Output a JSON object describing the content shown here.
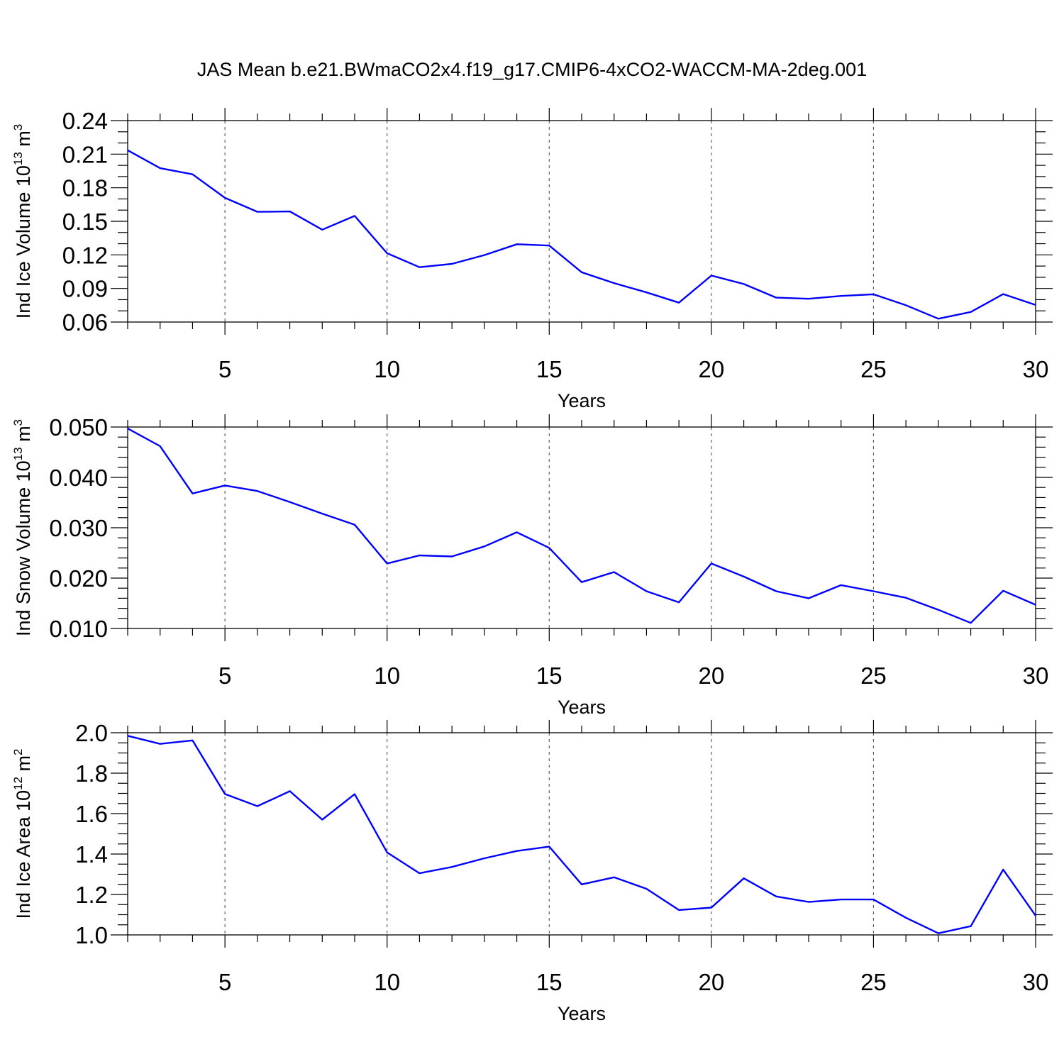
{
  "title": "JAS Mean b.e21.BWmaCO2x4.f19_g17.CMIP6-4xCO2-WACCM-MA-2deg.001",
  "chart_data": [
    {
      "type": "line",
      "id": "ice-volume",
      "ylabel_prefix": "Ind Ice Volume 10",
      "ylabel_exp": "13",
      "ylabel_unit": " m",
      "ylabel_unit_exp": "3",
      "xlabel": "Years",
      "xlim": [
        2,
        30
      ],
      "ylim": [
        0.06,
        0.24
      ],
      "xticks": [
        5,
        10,
        15,
        20,
        25,
        30
      ],
      "yticks": [
        0.06,
        0.09,
        0.12,
        0.15,
        0.18,
        0.21,
        0.24
      ],
      "ytick_labels": [
        "0.06",
        "0.09",
        "0.12",
        "0.15",
        "0.18",
        "0.21",
        "0.24"
      ],
      "yminor_step": 0.01,
      "grid_x": true,
      "x": [
        2,
        3,
        4,
        5,
        6,
        7,
        8,
        9,
        10,
        11,
        12,
        13,
        14,
        15,
        16,
        17,
        18,
        19,
        20,
        21,
        22,
        23,
        24,
        25,
        26,
        27,
        28,
        29,
        30
      ],
      "series": [
        {
          "name": "Ind Ice Volume",
          "color": "#0000ff",
          "values": [
            0.2135,
            0.1975,
            0.192,
            0.171,
            0.1585,
            0.1588,
            0.1425,
            0.1548,
            0.1215,
            0.109,
            0.112,
            0.1198,
            0.1295,
            0.1283,
            0.1045,
            0.0948,
            0.0865,
            0.0773,
            0.1015,
            0.094,
            0.0818,
            0.0808,
            0.0833,
            0.0848,
            0.075,
            0.063,
            0.069,
            0.085,
            0.0753
          ]
        }
      ]
    },
    {
      "type": "line",
      "id": "snow-volume",
      "ylabel_prefix": "Ind Snow Volume 10",
      "ylabel_exp": "13",
      "ylabel_unit": " m",
      "ylabel_unit_exp": "3",
      "xlabel": "Years",
      "xlim": [
        2,
        30
      ],
      "ylim": [
        0.01,
        0.05
      ],
      "xticks": [
        5,
        10,
        15,
        20,
        25,
        30
      ],
      "yticks": [
        0.01,
        0.02,
        0.03,
        0.04,
        0.05
      ],
      "ytick_labels": [
        "0.010",
        "0.020",
        "0.030",
        "0.040",
        "0.050"
      ],
      "yminor_step": 0.002,
      "grid_x": true,
      "x": [
        2,
        3,
        4,
        5,
        6,
        7,
        8,
        9,
        10,
        11,
        12,
        13,
        14,
        15,
        16,
        17,
        18,
        19,
        20,
        21,
        22,
        23,
        24,
        25,
        26,
        27,
        28,
        29,
        30
      ],
      "series": [
        {
          "name": "Ind Snow Volume",
          "color": "#0000ff",
          "values": [
            0.0497,
            0.0462,
            0.0368,
            0.0384,
            0.0373,
            0.0351,
            0.0328,
            0.0306,
            0.0229,
            0.0245,
            0.0243,
            0.0263,
            0.0291,
            0.026,
            0.0192,
            0.0212,
            0.0174,
            0.0152,
            0.0229,
            0.0203,
            0.0174,
            0.016,
            0.0186,
            0.0174,
            0.0161,
            0.0137,
            0.0111,
            0.0175,
            0.0147
          ]
        }
      ]
    },
    {
      "type": "line",
      "id": "ice-area",
      "ylabel_prefix": "Ind Ice Area 10",
      "ylabel_exp": "12",
      "ylabel_unit": " m",
      "ylabel_unit_exp": "2",
      "xlabel": "Years",
      "xlim": [
        2,
        30
      ],
      "ylim": [
        1.0,
        2.0
      ],
      "xticks": [
        5,
        10,
        15,
        20,
        25,
        30
      ],
      "yticks": [
        1.0,
        1.2,
        1.4,
        1.6,
        1.8,
        2.0
      ],
      "ytick_labels": [
        "1.0",
        "1.2",
        "1.4",
        "1.6",
        "1.8",
        "2.0"
      ],
      "yminor_step": 0.05,
      "grid_x": true,
      "x": [
        2,
        3,
        4,
        5,
        6,
        7,
        8,
        9,
        10,
        11,
        12,
        13,
        14,
        15,
        16,
        17,
        18,
        19,
        20,
        21,
        22,
        23,
        24,
        25,
        26,
        27,
        28,
        29,
        30
      ],
      "series": [
        {
          "name": "Ind Ice Area",
          "color": "#0000ff",
          "values": [
            1.985,
            1.945,
            1.962,
            1.697,
            1.637,
            1.711,
            1.57,
            1.696,
            1.408,
            1.305,
            1.336,
            1.379,
            1.415,
            1.437,
            1.25,
            1.285,
            1.228,
            1.123,
            1.135,
            1.28,
            1.19,
            1.163,
            1.175,
            1.175,
            1.085,
            1.008,
            1.043,
            1.323,
            1.095
          ]
        }
      ]
    }
  ]
}
